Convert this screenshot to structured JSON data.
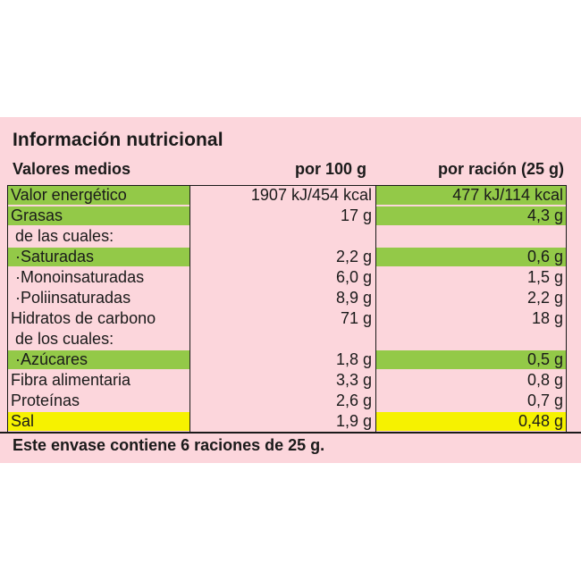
{
  "title": "Información nutricional",
  "header": {
    "col_label": "Valores medios",
    "col_per100": "por 100 g",
    "col_serving": "por ración (25 g)"
  },
  "rows": [
    {
      "label": "Valor energético",
      "per100": "1907 kJ/454 kcal",
      "serving": "477 kJ/114 kcal",
      "highlight": "green"
    },
    {
      "label": "Grasas",
      "per100": "17 g",
      "serving": "4,3 g",
      "highlight": "green"
    },
    {
      "label": " de las cuales:",
      "per100": "",
      "serving": "",
      "highlight": "none"
    },
    {
      "label": " ·Saturadas",
      "per100": "2,2 g",
      "serving": "0,6 g",
      "highlight": "green"
    },
    {
      "label": " ·Monoinsaturadas",
      "per100": "6,0 g",
      "serving": "1,5 g",
      "highlight": "none"
    },
    {
      "label": " ·Poliinsaturadas",
      "per100": "8,9 g",
      "serving": "2,2 g",
      "highlight": "none"
    },
    {
      "label": "Hidratos de carbono",
      "per100": "71 g",
      "serving": "18 g",
      "highlight": "none"
    },
    {
      "label": " de los cuales:",
      "per100": "",
      "serving": "",
      "highlight": "none"
    },
    {
      "label": " ·Azúcares",
      "per100": "1,8 g",
      "serving": "0,5 g",
      "highlight": "green"
    },
    {
      "label": "Fibra alimentaria",
      "per100": "3,3 g",
      "serving": "0,8 g",
      "highlight": "none"
    },
    {
      "label": "Proteínas",
      "per100": "2,6 g",
      "serving": "0,7 g",
      "highlight": "none"
    },
    {
      "label": "Sal",
      "per100": "1,9 g",
      "serving": "0,48 g",
      "highlight": "yellow"
    }
  ],
  "footer": "Este envase contiene 6 raciones de 25 g.",
  "colors": {
    "panel": "#fcd6dc",
    "green": "#93c948",
    "yellow": "#f6f200"
  }
}
